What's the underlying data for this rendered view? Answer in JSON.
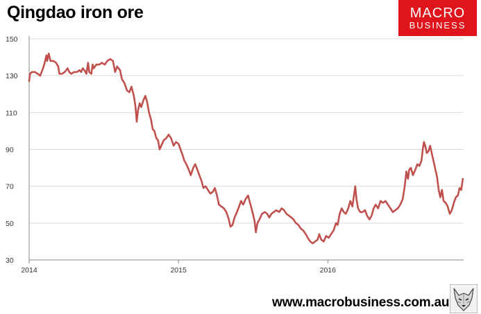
{
  "chart_data": {
    "type": "line",
    "title": "Qingdao iron ore",
    "xlabel": "",
    "ylabel": "",
    "x_range": [
      "2014-01-01",
      "2016-11-28"
    ],
    "ylim": [
      30,
      150
    ],
    "y_ticks": [
      30,
      50,
      70,
      90,
      110,
      130,
      150
    ],
    "x_ticks": [
      {
        "label": "2014",
        "date": "2014-01-01"
      },
      {
        "label": "2015",
        "date": "2015-01-01"
      },
      {
        "label": "2016",
        "date": "2016-01-01"
      }
    ],
    "grid": "horizontal",
    "series": [
      {
        "color": "#c0504d",
        "points": [
          [
            "2014-01-01",
            127
          ],
          [
            "2014-01-03",
            131
          ],
          [
            "2014-01-08",
            132
          ],
          [
            "2014-01-15",
            132
          ],
          [
            "2014-01-22",
            131
          ],
          [
            "2014-01-28",
            130
          ],
          [
            "2014-02-04",
            134
          ],
          [
            "2014-02-08",
            137
          ],
          [
            "2014-02-12",
            141
          ],
          [
            "2014-02-14",
            138
          ],
          [
            "2014-02-18",
            142
          ],
          [
            "2014-02-22",
            138
          ],
          [
            "2014-03-01",
            138
          ],
          [
            "2014-03-08",
            137
          ],
          [
            "2014-03-13",
            135
          ],
          [
            "2014-03-16",
            131
          ],
          [
            "2014-03-22",
            131
          ],
          [
            "2014-03-29",
            132
          ],
          [
            "2014-04-05",
            134
          ],
          [
            "2014-04-09",
            132
          ],
          [
            "2014-04-14",
            131
          ],
          [
            "2014-04-21",
            132
          ],
          [
            "2014-04-28",
            132
          ],
          [
            "2014-05-04",
            133
          ],
          [
            "2014-05-08",
            132
          ],
          [
            "2014-05-12",
            134
          ],
          [
            "2014-05-16",
            133
          ],
          [
            "2014-05-21",
            131
          ],
          [
            "2014-05-25",
            137
          ],
          [
            "2014-05-28",
            132
          ],
          [
            "2014-06-02",
            131
          ],
          [
            "2014-06-05",
            136
          ],
          [
            "2014-06-08",
            134
          ],
          [
            "2014-06-14",
            136
          ],
          [
            "2014-06-21",
            136
          ],
          [
            "2014-06-28",
            137
          ],
          [
            "2014-07-05",
            136
          ],
          [
            "2014-07-11",
            138
          ],
          [
            "2014-07-18",
            139
          ],
          [
            "2014-07-25",
            138
          ],
          [
            "2014-07-30",
            132
          ],
          [
            "2014-08-04",
            135
          ],
          [
            "2014-08-11",
            133
          ],
          [
            "2014-08-16",
            128
          ],
          [
            "2014-08-22",
            126
          ],
          [
            "2014-08-28",
            122
          ],
          [
            "2014-09-03",
            121
          ],
          [
            "2014-09-08",
            124
          ],
          [
            "2014-09-14",
            119
          ],
          [
            "2014-09-18",
            113
          ],
          [
            "2014-09-21",
            105
          ],
          [
            "2014-09-24",
            111
          ],
          [
            "2014-09-28",
            115
          ],
          [
            "2014-10-02",
            113
          ],
          [
            "2014-10-08",
            117
          ],
          [
            "2014-10-12",
            119
          ],
          [
            "2014-10-16",
            116
          ],
          [
            "2014-10-21",
            110
          ],
          [
            "2014-10-26",
            106
          ],
          [
            "2014-10-30",
            101
          ],
          [
            "2014-11-03",
            100
          ],
          [
            "2014-11-08",
            96
          ],
          [
            "2014-11-12",
            95
          ],
          [
            "2014-11-16",
            90
          ],
          [
            "2014-11-20",
            92
          ],
          [
            "2014-11-26",
            95
          ],
          [
            "2014-12-02",
            96
          ],
          [
            "2014-12-08",
            98
          ],
          [
            "2014-12-14",
            96
          ],
          [
            "2014-12-20",
            92
          ],
          [
            "2014-12-26",
            94
          ],
          [
            "2015-01-01",
            93
          ],
          [
            "2015-01-06",
            90
          ],
          [
            "2015-01-11",
            87
          ],
          [
            "2015-01-15",
            84
          ],
          [
            "2015-01-20",
            82
          ],
          [
            "2015-01-26",
            79
          ],
          [
            "2015-01-31",
            76
          ],
          [
            "2015-02-06",
            80
          ],
          [
            "2015-02-11",
            82
          ],
          [
            "2015-02-16",
            79
          ],
          [
            "2015-02-21",
            76
          ],
          [
            "2015-02-26",
            73
          ],
          [
            "2015-03-03",
            69
          ],
          [
            "2015-03-08",
            70
          ],
          [
            "2015-03-14",
            68
          ],
          [
            "2015-03-20",
            66
          ],
          [
            "2015-03-26",
            67
          ],
          [
            "2015-03-31",
            69
          ],
          [
            "2015-04-05",
            65
          ],
          [
            "2015-04-10",
            60
          ],
          [
            "2015-04-16",
            59
          ],
          [
            "2015-04-22",
            58
          ],
          [
            "2015-04-28",
            56
          ],
          [
            "2015-05-04",
            52
          ],
          [
            "2015-05-08",
            48
          ],
          [
            "2015-05-13",
            49
          ],
          [
            "2015-05-18",
            53
          ],
          [
            "2015-05-24",
            56
          ],
          [
            "2015-05-29",
            59
          ],
          [
            "2015-06-03",
            62
          ],
          [
            "2015-06-08",
            60
          ],
          [
            "2015-06-14",
            63
          ],
          [
            "2015-06-20",
            65
          ],
          [
            "2015-06-26",
            60
          ],
          [
            "2015-07-02",
            55
          ],
          [
            "2015-07-06",
            51
          ],
          [
            "2015-07-09",
            45
          ],
          [
            "2015-07-13",
            50
          ],
          [
            "2015-07-18",
            52
          ],
          [
            "2015-07-24",
            55
          ],
          [
            "2015-07-31",
            56
          ],
          [
            "2015-08-06",
            55
          ],
          [
            "2015-08-11",
            53
          ],
          [
            "2015-08-16",
            55
          ],
          [
            "2015-08-22",
            56
          ],
          [
            "2015-08-28",
            57
          ],
          [
            "2015-09-04",
            56
          ],
          [
            "2015-09-10",
            58
          ],
          [
            "2015-09-16",
            57
          ],
          [
            "2015-09-22",
            55
          ],
          [
            "2015-09-28",
            54
          ],
          [
            "2015-10-04",
            53
          ],
          [
            "2015-10-09",
            52
          ],
          [
            "2015-10-15",
            50
          ],
          [
            "2015-10-21",
            49
          ],
          [
            "2015-10-27",
            47
          ],
          [
            "2015-11-02",
            46
          ],
          [
            "2015-11-08",
            44
          ],
          [
            "2015-11-13",
            42
          ],
          [
            "2015-11-19",
            40
          ],
          [
            "2015-11-25",
            39
          ],
          [
            "2015-12-01",
            40
          ],
          [
            "2015-12-07",
            41
          ],
          [
            "2015-12-11",
            44
          ],
          [
            "2015-12-16",
            41
          ],
          [
            "2015-12-22",
            40
          ],
          [
            "2015-12-28",
            43
          ],
          [
            "2016-01-03",
            42
          ],
          [
            "2016-01-09",
            44
          ],
          [
            "2016-01-15",
            46
          ],
          [
            "2016-01-21",
            50
          ],
          [
            "2016-01-25",
            49
          ],
          [
            "2016-01-30",
            55
          ],
          [
            "2016-02-04",
            58
          ],
          [
            "2016-02-09",
            56
          ],
          [
            "2016-02-14",
            55
          ],
          [
            "2016-02-20",
            58
          ],
          [
            "2016-02-25",
            62
          ],
          [
            "2016-03-01",
            59
          ],
          [
            "2016-03-05",
            65
          ],
          [
            "2016-03-08",
            70
          ],
          [
            "2016-03-11",
            63
          ],
          [
            "2016-03-15",
            58
          ],
          [
            "2016-03-20",
            56
          ],
          [
            "2016-03-26",
            56
          ],
          [
            "2016-04-01",
            57
          ],
          [
            "2016-04-06",
            54
          ],
          [
            "2016-04-12",
            52
          ],
          [
            "2016-04-17",
            54
          ],
          [
            "2016-04-22",
            58
          ],
          [
            "2016-04-27",
            60
          ],
          [
            "2016-05-03",
            58
          ],
          [
            "2016-05-09",
            62
          ],
          [
            "2016-05-15",
            61
          ],
          [
            "2016-05-21",
            62
          ],
          [
            "2016-05-27",
            60
          ],
          [
            "2016-06-02",
            58
          ],
          [
            "2016-06-08",
            56
          ],
          [
            "2016-06-14",
            57
          ],
          [
            "2016-06-20",
            58
          ],
          [
            "2016-06-26",
            60
          ],
          [
            "2016-07-02",
            63
          ],
          [
            "2016-07-07",
            70
          ],
          [
            "2016-07-11",
            78
          ],
          [
            "2016-07-15",
            74
          ],
          [
            "2016-07-18",
            79
          ],
          [
            "2016-07-22",
            80
          ],
          [
            "2016-07-27",
            76
          ],
          [
            "2016-08-02",
            79
          ],
          [
            "2016-08-07",
            82
          ],
          [
            "2016-08-12",
            81
          ],
          [
            "2016-08-17",
            84
          ],
          [
            "2016-08-20",
            90
          ],
          [
            "2016-08-23",
            94
          ],
          [
            "2016-08-26",
            92
          ],
          [
            "2016-08-30",
            88
          ],
          [
            "2016-09-03",
            89
          ],
          [
            "2016-09-07",
            92
          ],
          [
            "2016-09-12",
            87
          ],
          [
            "2016-09-16",
            83
          ],
          [
            "2016-09-20",
            79
          ],
          [
            "2016-09-24",
            75
          ],
          [
            "2016-09-28",
            68
          ],
          [
            "2016-10-02",
            64
          ],
          [
            "2016-10-06",
            68
          ],
          [
            "2016-10-10",
            62
          ],
          [
            "2016-10-15",
            61
          ],
          [
            "2016-10-20",
            59
          ],
          [
            "2016-10-25",
            55
          ],
          [
            "2016-10-30",
            57
          ],
          [
            "2016-11-04",
            61
          ],
          [
            "2016-11-09",
            64
          ],
          [
            "2016-11-14",
            65
          ],
          [
            "2016-11-18",
            69
          ],
          [
            "2016-11-22",
            68
          ],
          [
            "2016-11-26",
            74
          ]
        ]
      }
    ]
  },
  "branding": {
    "logo_line1": "MACRO",
    "logo_line2": "BUSINESS",
    "logo_color": "#e0151b",
    "website": "www.macrobusiness.com.au",
    "mascot": "wolf-icon"
  }
}
